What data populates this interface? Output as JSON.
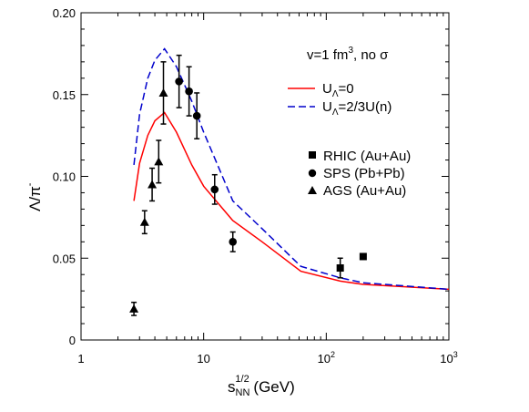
{
  "chart_data": {
    "type": "line",
    "title": "",
    "xlabel": {
      "base": "s",
      "sub": "NN",
      "sup": "1/2",
      "tail": " (GeV)"
    },
    "ylabel": {
      "base": "Λ/π",
      "sup": "-"
    },
    "xscale": "log",
    "xlim": [
      1,
      1000
    ],
    "ylim": [
      0,
      0.2
    ],
    "grid": false,
    "x_ticks": [
      {
        "value": 1,
        "label": "1"
      },
      {
        "value": 10,
        "label": "10"
      },
      {
        "value": 100,
        "label": "10",
        "sup": "2"
      },
      {
        "value": 1000,
        "label": "10",
        "sup": "3"
      }
    ],
    "y_ticks": [
      {
        "value": 0,
        "label": "0"
      },
      {
        "value": 0.05,
        "label": "0.05"
      },
      {
        "value": 0.1,
        "label": "0.10"
      },
      {
        "value": 0.15,
        "label": "0.15"
      },
      {
        "value": 0.2,
        "label": "0.20"
      }
    ],
    "annotation": {
      "text": "v=1 fm",
      "sup": "3",
      "tail": ", no σ"
    },
    "lines": [
      {
        "legend": {
          "base": "U",
          "sub": "Λ",
          "tail": "=0"
        },
        "color": "#ff0000",
        "dash": "solid",
        "x": [
          2.7,
          3.0,
          3.5,
          4.0,
          4.8,
          6.0,
          8.0,
          10.0,
          17.3,
          30.0,
          62.0,
          130.0,
          200.0,
          1000.0
        ],
        "y": [
          0.085,
          0.108,
          0.125,
          0.134,
          0.139,
          0.127,
          0.107,
          0.094,
          0.073,
          0.06,
          0.042,
          0.036,
          0.034,
          0.031
        ]
      },
      {
        "legend": {
          "base": "U",
          "sub": "Λ",
          "tail": "=2/3U(n)"
        },
        "color": "#0000cc",
        "dash": "dashed",
        "x": [
          2.7,
          3.0,
          3.5,
          4.0,
          4.8,
          6.0,
          8.0,
          10.0,
          17.3,
          30.0,
          62.0,
          130.0,
          200.0,
          1000.0
        ],
        "y": [
          0.107,
          0.138,
          0.16,
          0.171,
          0.178,
          0.167,
          0.146,
          0.127,
          0.085,
          0.068,
          0.045,
          0.038,
          0.035,
          0.031
        ]
      }
    ],
    "series": [
      {
        "name": "RHIC (Au+Au)",
        "marker": "square",
        "points": [
          {
            "x": 130,
            "y": 0.044,
            "err": 0.006
          },
          {
            "x": 200,
            "y": 0.051,
            "err": 0
          }
        ]
      },
      {
        "name": "SPS (Pb+Pb)",
        "marker": "circle",
        "points": [
          {
            "x": 6.3,
            "y": 0.158,
            "err": 0.016
          },
          {
            "x": 7.6,
            "y": 0.152,
            "err": 0.015
          },
          {
            "x": 8.8,
            "y": 0.137,
            "err": 0.014
          },
          {
            "x": 12.3,
            "y": 0.092,
            "err": 0.009
          },
          {
            "x": 17.3,
            "y": 0.06,
            "err": 0.006
          }
        ]
      },
      {
        "name": "AGS (Au+Au)",
        "marker": "triangle",
        "points": [
          {
            "x": 2.7,
            "y": 0.019,
            "err": 0.004
          },
          {
            "x": 3.3,
            "y": 0.072,
            "err": 0.007
          },
          {
            "x": 3.8,
            "y": 0.095,
            "err": 0.01
          },
          {
            "x": 4.3,
            "y": 0.109,
            "err": 0.013
          },
          {
            "x": 4.7,
            "y": 0.151,
            "err": 0.019
          }
        ]
      }
    ]
  }
}
